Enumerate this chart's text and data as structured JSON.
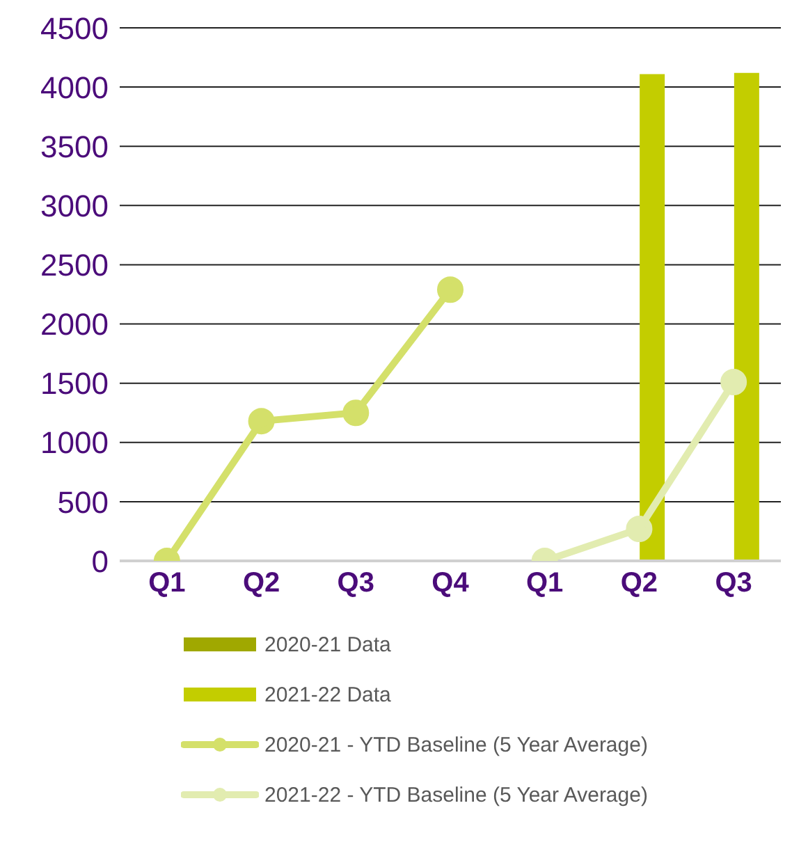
{
  "chart_data": {
    "type": "bar",
    "categories": [
      "Q1",
      "Q2",
      "Q3",
      "Q4",
      "Q1",
      "Q2",
      "Q3"
    ],
    "series": [
      {
        "name": "2020-21 Data",
        "color": "#a0a800",
        "values": [
          null,
          null,
          null,
          null,
          null,
          null,
          null
        ]
      },
      {
        "name": "2021-22 Data",
        "color": "#c3cd00",
        "values": [
          null,
          null,
          null,
          null,
          null,
          4110,
          4120
        ]
      },
      {
        "name": "2020-21 - YTD Baseline (5 Year Average)",
        "type": "line",
        "color": "#d4e06a",
        "values": [
          0,
          1180,
          1250,
          2290,
          null,
          null,
          null
        ]
      },
      {
        "name": "2021-22 - YTD Baseline (5 Year Average)",
        "type": "line",
        "color": "#e2ecb0",
        "values": [
          null,
          null,
          null,
          null,
          0,
          270,
          1510
        ]
      }
    ],
    "ylim": [
      0,
      4500
    ],
    "yticks": [
      0,
      500,
      1000,
      1500,
      2000,
      2500,
      3000,
      3500,
      4000,
      4500
    ],
    "grid": "y",
    "legend": "bottom",
    "marker": "circle",
    "line_style": "solid"
  }
}
